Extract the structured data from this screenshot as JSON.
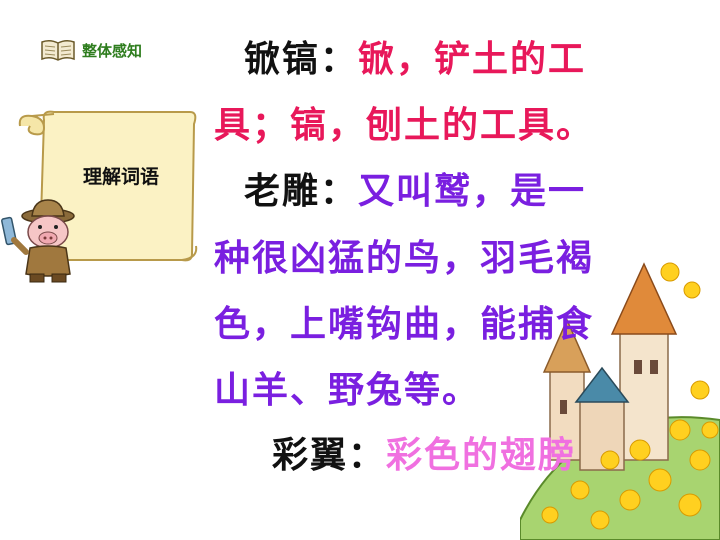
{
  "header": {
    "badge_label": "整体感知",
    "icon": "book-icon"
  },
  "scroll": {
    "label": "理解词语"
  },
  "entries": [
    {
      "term": "锨镐：",
      "def_line1": "锨，铲土的工",
      "def_line2": "具；镐，刨土的工具。"
    },
    {
      "term": "老雕：",
      "def_line1": "又叫鹫，是一",
      "def_line2": "种很凶猛的鸟，羽毛褐",
      "def_line3": "色，上嘴钩曲，能捕食",
      "def_line4": "山羊、野兔等。"
    },
    {
      "term": "彩翼：",
      "def_line1": "彩色的翅膀"
    }
  ],
  "colors": {
    "term": "#111111",
    "definition_1": "#e8185a",
    "definition_2": "#7a1fe0",
    "definition_3": "#f070e0"
  }
}
